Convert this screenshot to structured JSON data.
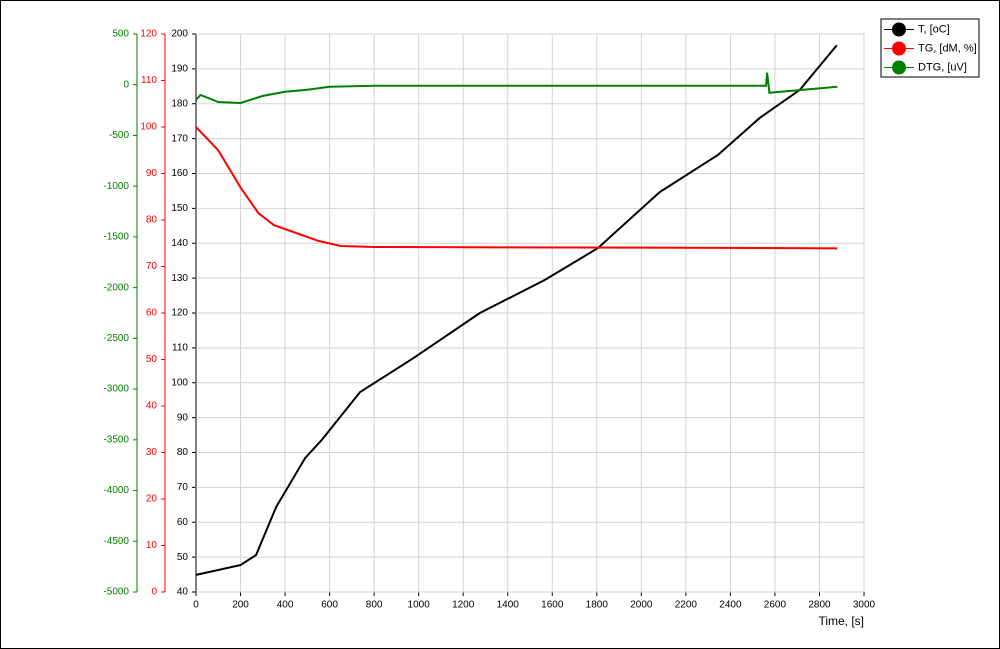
{
  "chart_data": {
    "type": "line",
    "x_label": "Time, [s]",
    "xlim": [
      0,
      3000
    ],
    "xticks": [
      0,
      200,
      400,
      600,
      800,
      1000,
      1200,
      1400,
      1600,
      1800,
      2000,
      2200,
      2400,
      2600,
      2800,
      3000
    ],
    "ylim": [
      40,
      200
    ],
    "yticks": [
      40,
      50,
      60,
      70,
      80,
      90,
      100,
      110,
      120,
      130,
      140,
      150,
      160,
      170,
      180,
      190,
      200
    ],
    "y2lim": [
      0,
      120
    ],
    "y2ticks": [
      0,
      10,
      20,
      30,
      40,
      50,
      60,
      70,
      80,
      90,
      100,
      110,
      120
    ],
    "y3lim": [
      -5000,
      500
    ],
    "y3ticks": [
      -5000,
      -4500,
      -4000,
      -3500,
      -3000,
      -2500,
      -2000,
      -1500,
      -1000,
      -500,
      0,
      500
    ],
    "grid": true,
    "legend": "top-right",
    "series": [
      {
        "name": "T, [oC]",
        "color": "#000000",
        "axis": "y",
        "x": [
          0,
          200,
          270,
          360,
          490,
          565,
          736,
          975,
          1275,
          1567,
          1805,
          2083,
          2344,
          2533,
          2712,
          2878
        ],
        "values": [
          44.9,
          47.7,
          50.6,
          64.4,
          78.4,
          83.6,
          97.3,
          107,
          120,
          129.5,
          138.6,
          154.7,
          165.3,
          176,
          184,
          196.8
        ]
      },
      {
        "name": "TG, [dM, %]",
        "color": "#ff0000",
        "axis": "y2",
        "x": [
          0,
          100,
          200,
          280,
          350,
          450,
          550,
          650,
          800,
          2400,
          2880
        ],
        "values": [
          100,
          95,
          87,
          81.5,
          78.9,
          77.2,
          75.5,
          74.4,
          74.2,
          74,
          73.9
        ]
      },
      {
        "name": "DTG, [uV]",
        "color": "#008000",
        "axis": "y3",
        "x": [
          0,
          20,
          100,
          200,
          300,
          400,
          500,
          600,
          800,
          1200,
          2000,
          2560,
          2565,
          2575,
          2880
        ],
        "values": [
          -150,
          -100,
          -170,
          -180,
          -110,
          -70,
          -50,
          -20,
          -10,
          -10,
          -10,
          -10,
          120,
          -80,
          -20
        ]
      }
    ]
  }
}
